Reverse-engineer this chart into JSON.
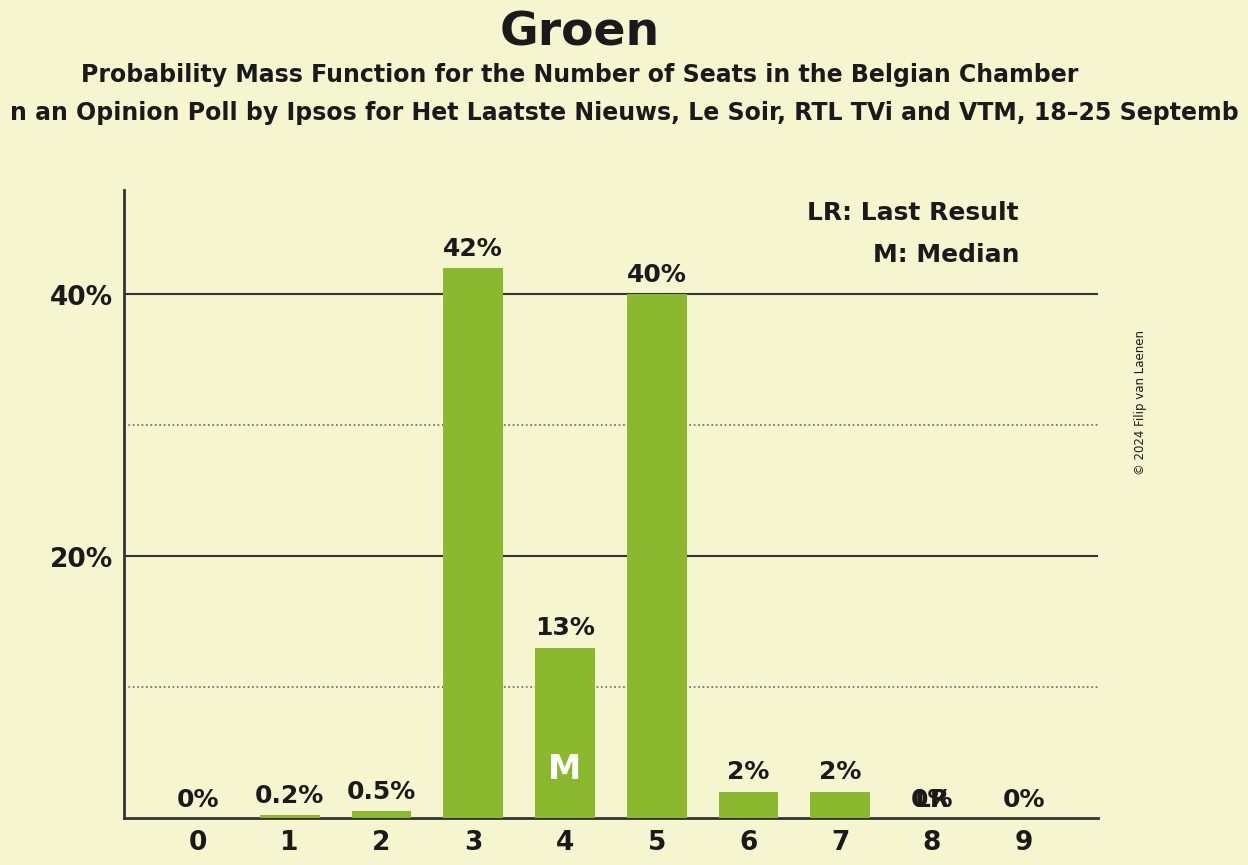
{
  "title": "Groen",
  "subtitle1": "Probability Mass Function for the Number of Seats in the Belgian Chamber",
  "subtitle2": "n an Opinion Poll by Ipsos for Het Laatste Nieuws, Le Soir, RTL TVi and VTM, 18–25 Septemb",
  "categories": [
    0,
    1,
    2,
    3,
    4,
    5,
    6,
    7,
    8,
    9
  ],
  "values": [
    0.0,
    0.2,
    0.5,
    42.0,
    13.0,
    40.0,
    2.0,
    2.0,
    0.0,
    0.0
  ],
  "labels": [
    "0%",
    "0.2%",
    "0.5%",
    "42%",
    "13%",
    "40%",
    "2%",
    "2%",
    "0%",
    "0%"
  ],
  "bar_color": "#8cb830",
  "background_color": "#f5f5d0",
  "text_color": "#1a1a1a",
  "median_bar": 4,
  "last_result_bar": 8,
  "yticks": [
    0,
    20,
    40
  ],
  "ytick_labels": [
    "",
    "20%",
    "40%"
  ],
  "ylim": [
    0,
    48
  ],
  "legend_lr": "LR: Last Result",
  "legend_m": "M: Median",
  "copyright_text": "© 2024 Filip van Laenen",
  "title_fontsize": 34,
  "subtitle1_fontsize": 17,
  "subtitle2_fontsize": 17,
  "axis_fontsize": 19,
  "label_fontsize": 18,
  "legend_fontsize": 18,
  "dotted_grid_levels": [
    10,
    30
  ],
  "solid_grid_levels": [
    20,
    40
  ],
  "bar_width": 0.65
}
